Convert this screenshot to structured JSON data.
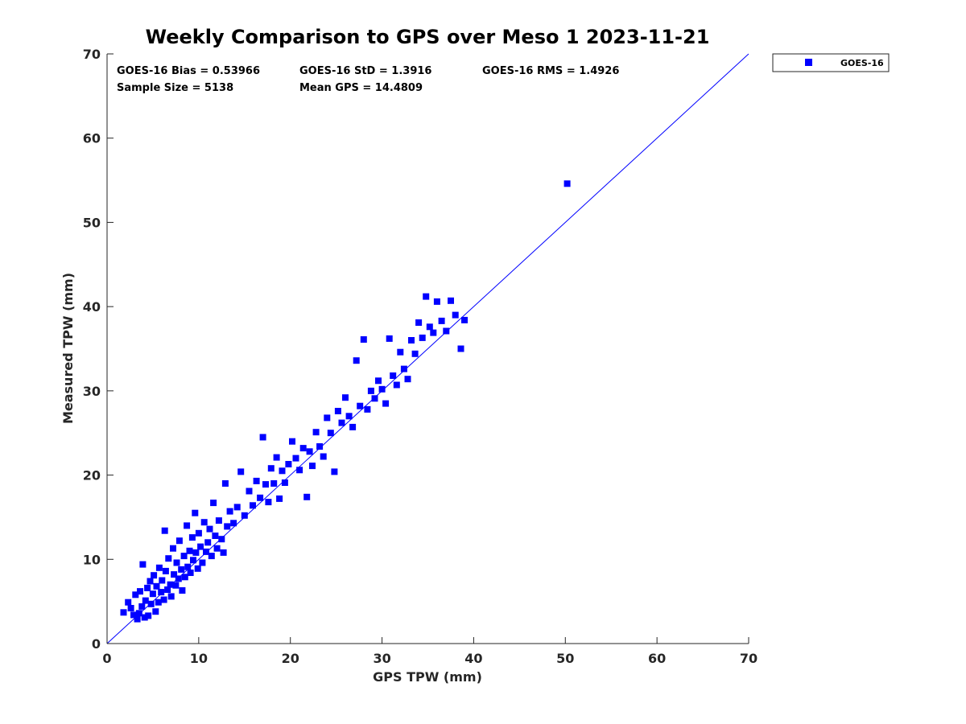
{
  "chart_data": {
    "type": "scatter",
    "title": "Weekly Comparison to GPS over Meso 1 2023-11-21",
    "xlabel": "GPS TPW (mm)",
    "ylabel": "Measured TPW (mm)",
    "xlim": [
      0,
      70
    ],
    "ylim": [
      0,
      70
    ],
    "xticks": [
      0,
      10,
      20,
      30,
      40,
      50,
      60,
      70
    ],
    "yticks": [
      0,
      10,
      20,
      30,
      40,
      50,
      60,
      70
    ],
    "grid": false,
    "legend_position": "outside-top-right",
    "reference_line": {
      "from": [
        0,
        0
      ],
      "to": [
        70,
        70
      ],
      "color": "#0000ff"
    },
    "annotations": {
      "bias": "GOES-16 Bias = 0.53966",
      "std": "GOES-16 StD = 1.3916",
      "rms": "GOES-16 RMS = 1.4926",
      "sample_size": "Sample Size = 5138",
      "mean_gps": "Mean GPS = 14.4809"
    },
    "series": [
      {
        "name": "GOES-16",
        "color": "#0000ff",
        "marker": "square",
        "points": [
          [
            1.8,
            3.7
          ],
          [
            2.3,
            4.9
          ],
          [
            2.6,
            4.2
          ],
          [
            2.9,
            3.4
          ],
          [
            3.1,
            5.8
          ],
          [
            3.3,
            2.9
          ],
          [
            3.5,
            3.6
          ],
          [
            3.6,
            6.2
          ],
          [
            3.8,
            4.4
          ],
          [
            3.9,
            9.4
          ],
          [
            4.1,
            3.1
          ],
          [
            4.2,
            5.1
          ],
          [
            4.4,
            6.6
          ],
          [
            4.5,
            3.3
          ],
          [
            4.7,
            7.4
          ],
          [
            4.8,
            4.7
          ],
          [
            5.0,
            5.9
          ],
          [
            5.1,
            8.1
          ],
          [
            5.3,
            3.8
          ],
          [
            5.4,
            6.8
          ],
          [
            5.6,
            4.9
          ],
          [
            5.7,
            9.0
          ],
          [
            5.9,
            6.1
          ],
          [
            6.0,
            7.5
          ],
          [
            6.2,
            5.2
          ],
          [
            6.3,
            13.4
          ],
          [
            6.4,
            8.6
          ],
          [
            6.6,
            6.4
          ],
          [
            6.7,
            10.1
          ],
          [
            6.9,
            7.0
          ],
          [
            7.0,
            5.6
          ],
          [
            7.2,
            11.3
          ],
          [
            7.3,
            8.2
          ],
          [
            7.5,
            6.9
          ],
          [
            7.6,
            9.6
          ],
          [
            7.8,
            7.7
          ],
          [
            7.9,
            12.2
          ],
          [
            8.1,
            8.8
          ],
          [
            8.2,
            6.3
          ],
          [
            8.4,
            10.4
          ],
          [
            8.5,
            7.9
          ],
          [
            8.7,
            14.0
          ],
          [
            8.8,
            9.1
          ],
          [
            9.0,
            11.0
          ],
          [
            9.1,
            8.4
          ],
          [
            9.3,
            12.6
          ],
          [
            9.4,
            9.9
          ],
          [
            9.6,
            15.5
          ],
          [
            9.7,
            10.8
          ],
          [
            9.9,
            8.9
          ],
          [
            10.0,
            13.1
          ],
          [
            10.2,
            11.5
          ],
          [
            10.4,
            9.6
          ],
          [
            10.6,
            14.4
          ],
          [
            10.8,
            10.9
          ],
          [
            11.0,
            12.0
          ],
          [
            11.2,
            13.6
          ],
          [
            11.4,
            10.4
          ],
          [
            11.6,
            16.7
          ],
          [
            11.8,
            12.8
          ],
          [
            12.0,
            11.3
          ],
          [
            12.2,
            14.6
          ],
          [
            12.5,
            12.4
          ],
          [
            12.7,
            10.8
          ],
          [
            12.9,
            19.0
          ],
          [
            13.1,
            13.9
          ],
          [
            13.4,
            15.7
          ],
          [
            13.8,
            14.3
          ],
          [
            14.2,
            16.2
          ],
          [
            14.6,
            20.4
          ],
          [
            15.0,
            15.2
          ],
          [
            15.5,
            18.1
          ],
          [
            15.9,
            16.4
          ],
          [
            16.3,
            19.3
          ],
          [
            16.7,
            17.3
          ],
          [
            17.0,
            24.5
          ],
          [
            17.3,
            18.9
          ],
          [
            17.6,
            16.8
          ],
          [
            17.9,
            20.8
          ],
          [
            18.2,
            19.0
          ],
          [
            18.5,
            22.1
          ],
          [
            18.8,
            17.2
          ],
          [
            19.1,
            20.5
          ],
          [
            19.4,
            19.1
          ],
          [
            19.8,
            21.3
          ],
          [
            20.2,
            24.0
          ],
          [
            20.6,
            22.0
          ],
          [
            21.0,
            20.6
          ],
          [
            21.4,
            23.2
          ],
          [
            21.8,
            17.4
          ],
          [
            22.1,
            22.8
          ],
          [
            22.4,
            21.1
          ],
          [
            22.8,
            25.1
          ],
          [
            23.2,
            23.4
          ],
          [
            23.6,
            22.2
          ],
          [
            24.0,
            26.8
          ],
          [
            24.4,
            25.0
          ],
          [
            24.8,
            20.4
          ],
          [
            25.2,
            27.6
          ],
          [
            25.6,
            26.2
          ],
          [
            26.0,
            29.2
          ],
          [
            26.4,
            27.0
          ],
          [
            26.8,
            25.7
          ],
          [
            27.2,
            33.6
          ],
          [
            27.6,
            28.2
          ],
          [
            28.0,
            36.1
          ],
          [
            28.4,
            27.8
          ],
          [
            28.8,
            30.0
          ],
          [
            29.2,
            29.1
          ],
          [
            29.6,
            31.2
          ],
          [
            30.0,
            30.2
          ],
          [
            30.4,
            28.5
          ],
          [
            30.8,
            36.2
          ],
          [
            31.2,
            31.8
          ],
          [
            31.6,
            30.7
          ],
          [
            32.0,
            34.6
          ],
          [
            32.4,
            32.6
          ],
          [
            32.8,
            31.4
          ],
          [
            33.2,
            36.0
          ],
          [
            33.6,
            34.4
          ],
          [
            34.0,
            38.1
          ],
          [
            34.4,
            36.3
          ],
          [
            34.8,
            41.2
          ],
          [
            35.2,
            37.6
          ],
          [
            35.6,
            36.9
          ],
          [
            36.0,
            40.6
          ],
          [
            36.5,
            38.3
          ],
          [
            37.0,
            37.1
          ],
          [
            37.5,
            40.7
          ],
          [
            38.0,
            39.0
          ],
          [
            38.6,
            35.0
          ],
          [
            39.0,
            38.4
          ],
          [
            50.2,
            54.6
          ]
        ]
      }
    ]
  }
}
